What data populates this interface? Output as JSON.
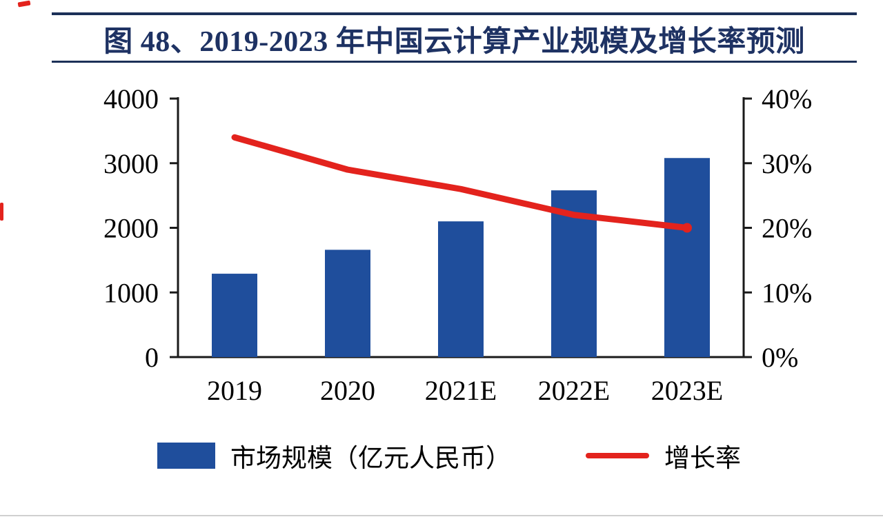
{
  "header": {
    "title": "图 48、2019-2023 年中国云计算产业规模及增长率预测"
  },
  "chart_data": {
    "type": "combo",
    "title": "图 48、2019-2023 年中国云计算产业规模及增长率预测",
    "categories": [
      "2019",
      "2020",
      "2021E",
      "2022E",
      "2023E"
    ],
    "series": [
      {
        "name": "市场规模（亿元人民币）",
        "type": "bar",
        "axis": "left",
        "color": "#1f4e9c",
        "values": [
          1290,
          1660,
          2100,
          2580,
          3080
        ]
      },
      {
        "name": "增长率",
        "type": "line",
        "axis": "right",
        "color": "#e3231d",
        "values": [
          34,
          29,
          26,
          22,
          20
        ]
      }
    ],
    "left_axis": {
      "min": 0,
      "max": 4000,
      "ticks": [
        "0",
        "1000",
        "2000",
        "3000",
        "4000"
      ]
    },
    "right_axis": {
      "min": 0,
      "max": 40,
      "unit": "%",
      "ticks": [
        "0%",
        "10%",
        "20%",
        "30%",
        "40%"
      ]
    },
    "legend_position": "bottom",
    "grid": false
  }
}
